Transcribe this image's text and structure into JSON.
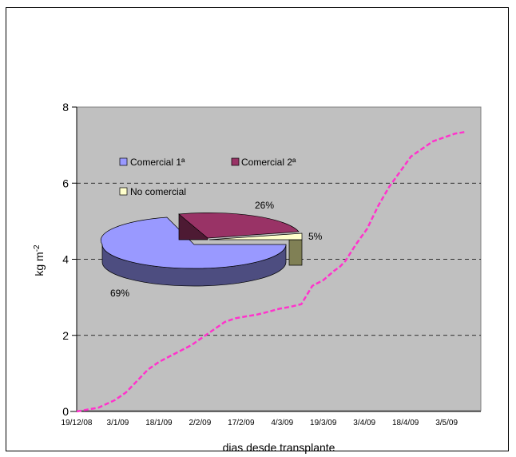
{
  "chart_data": [
    {
      "type": "line",
      "title": "",
      "xlabel": "dias desde transplante",
      "ylabel": "kg m",
      "ylabel_superscript": "-2",
      "ylim": [
        0,
        8
      ],
      "yticks": [
        "0",
        "2",
        "4",
        "6",
        "8"
      ],
      "yticks_values": [
        0,
        2,
        4,
        6,
        8
      ],
      "xtick_labels": [
        "19/12/08",
        "3/1/09",
        "18/1/09",
        "2/2/09",
        "17/2/09",
        "4/3/09",
        "19/3/09",
        "3/4/09",
        "18/4/09",
        "3/5/09"
      ],
      "grid": "dashed horizontal",
      "plot_background": "#c0c0c0",
      "line_color": "#ff33cc",
      "x": [
        0,
        8,
        14,
        18,
        22,
        26,
        30,
        34,
        38,
        42,
        46,
        50,
        54,
        58,
        62,
        66,
        70,
        74,
        78,
        82,
        86,
        90,
        94,
        96,
        98,
        102,
        106,
        110,
        114,
        118,
        122,
        126,
        130,
        134,
        138,
        142
      ],
      "y": [
        0.0,
        0.1,
        0.3,
        0.5,
        0.8,
        1.1,
        1.3,
        1.45,
        1.6,
        1.75,
        1.95,
        2.15,
        2.35,
        2.45,
        2.5,
        2.55,
        2.62,
        2.7,
        2.75,
        2.82,
        3.3,
        3.45,
        3.7,
        3.8,
        3.95,
        4.4,
        4.8,
        5.4,
        5.9,
        6.3,
        6.7,
        6.9,
        7.1,
        7.2,
        7.3,
        7.35
      ]
    },
    {
      "type": "pie",
      "labels": [
        "Comercial 1ª",
        "Comercial 2ª",
        "No comercial"
      ],
      "values": [
        69,
        26,
        5
      ],
      "value_labels": [
        "69%",
        "26%",
        "5%"
      ],
      "colors": [
        "#9999ff",
        "#993366",
        "#ffffcc"
      ]
    }
  ]
}
